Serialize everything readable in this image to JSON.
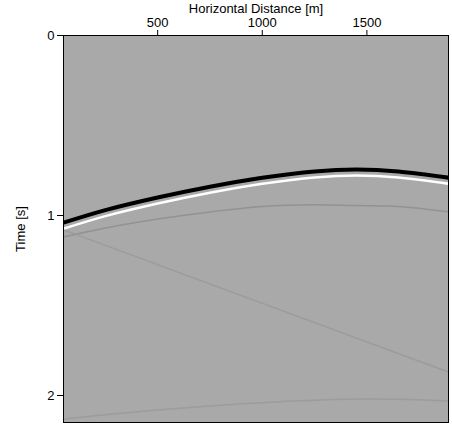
{
  "chart_data": {
    "type": "seismic",
    "x_label": "Horizontal Distance [m]",
    "y_label": "Time [s]",
    "xlim": [
      50,
      1890
    ],
    "xticks": [
      500,
      1000,
      1500
    ],
    "ylim": [
      0,
      2.15
    ],
    "yticks": [
      0,
      1,
      2
    ],
    "grid": false,
    "series": [
      {
        "color": "#000000",
        "x": [
          50,
          250,
          500,
          750,
          1000,
          1250,
          1450,
          1650,
          1890
        ],
        "values": [
          1.04,
          0.97,
          0.9,
          0.84,
          0.79,
          0.755,
          0.745,
          0.755,
          0.79
        ]
      },
      {
        "color": "#8c8c8c",
        "x": [
          50,
          250,
          500,
          750,
          1000,
          1250,
          1450,
          1650,
          1890
        ],
        "values": [
          1.12,
          1.07,
          1.02,
          0.98,
          0.95,
          0.94,
          0.945,
          0.95,
          0.98
        ]
      },
      {
        "color": "#999999",
        "x": [
          50,
          1890
        ],
        "values": [
          1.08,
          1.87
        ]
      },
      {
        "color": "#999999",
        "x": [
          50,
          500,
          1000,
          1500,
          1890
        ],
        "values": [
          2.13,
          2.08,
          2.04,
          2.02,
          2.03
        ]
      }
    ]
  }
}
